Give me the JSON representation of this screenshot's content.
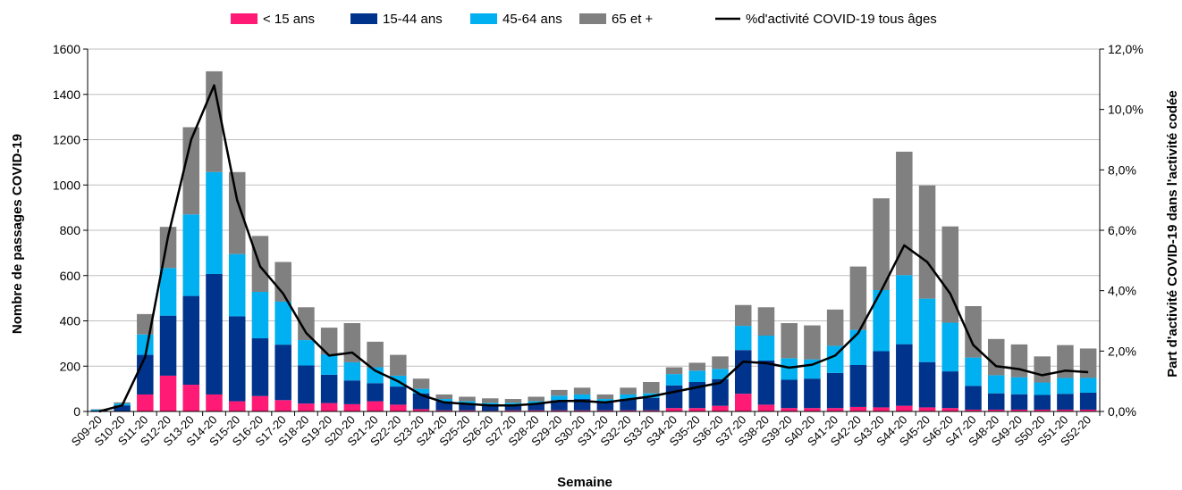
{
  "chart_data": {
    "type": "bar",
    "stacked": true,
    "xlabel": "Semaine",
    "ylabel": "Nombre de passages COVID-19",
    "y2label": "Part d'activité COVID-19 dans l'activité codée",
    "ylim": [
      0,
      1600
    ],
    "y2lim": [
      0,
      12
    ],
    "yticks": [
      "0",
      "200",
      "400",
      "600",
      "800",
      "1000",
      "1200",
      "1400",
      "1600"
    ],
    "y2ticks": [
      "0,0%",
      "2,0%",
      "4,0%",
      "6,0%",
      "8,0%",
      "10,0%",
      "12,0%"
    ],
    "grid": true,
    "legend_position": "top",
    "categories": [
      "S09-20",
      "S10-20",
      "S11-20",
      "S12-20",
      "S13-20",
      "S14-20",
      "S15-20",
      "S16-20",
      "S17-20",
      "S18-20",
      "S19-20",
      "S20-20",
      "S21-20",
      "S22-20",
      "S23-20",
      "S24-20",
      "S25-20",
      "S26-20",
      "S27-20",
      "S28-20",
      "S29-20",
      "S30-20",
      "S31-20",
      "S32-20",
      "S33-20",
      "S34-20",
      "S35-20",
      "S36-20",
      "S37-20",
      "S38-20",
      "S39-20",
      "S40-20",
      "S41-20",
      "S42-20",
      "S43-20",
      "S44-20",
      "S45-20",
      "S46-20",
      "S47-20",
      "S48-20",
      "S49-20",
      "S50-20",
      "S51-20",
      "S52-20"
    ],
    "series": [
      {
        "name": "< 15 ans",
        "color": "#ff1a75",
        "values": [
          1,
          2,
          75,
          158,
          118,
          75,
          45,
          68,
          50,
          35,
          37,
          32,
          45,
          30,
          10,
          5,
          5,
          3,
          5,
          5,
          5,
          5,
          5,
          5,
          5,
          15,
          15,
          25,
          78,
          30,
          15,
          15,
          15,
          20,
          18,
          25,
          18,
          15,
          8,
          8,
          8,
          8,
          8,
          8
        ]
      },
      {
        "name": "15-44 ans",
        "color": "#00338c",
        "values": [
          3,
          25,
          175,
          265,
          392,
          532,
          375,
          255,
          245,
          168,
          125,
          105,
          80,
          80,
          70,
          40,
          30,
          25,
          25,
          30,
          45,
          50,
          40,
          50,
          55,
          100,
          115,
          118,
          193,
          195,
          125,
          130,
          155,
          185,
          248,
          272,
          200,
          162,
          105,
          72,
          68,
          65,
          70,
          75
        ]
      },
      {
        "name": "45-64 ans",
        "color": "#00b0f0",
        "values": [
          4,
          8,
          90,
          210,
          360,
          450,
          275,
          205,
          190,
          112,
          90,
          80,
          70,
          48,
          20,
          10,
          10,
          10,
          8,
          10,
          20,
          20,
          10,
          20,
          20,
          50,
          50,
          45,
          107,
          110,
          95,
          85,
          120,
          155,
          270,
          305,
          280,
          215,
          125,
          80,
          75,
          55,
          70,
          65
        ]
      },
      {
        "name": "65 et +",
        "color": "#808080",
        "values": [
          2,
          5,
          90,
          182,
          385,
          445,
          362,
          247,
          175,
          145,
          118,
          173,
          113,
          92,
          45,
          20,
          20,
          20,
          17,
          20,
          25,
          30,
          20,
          30,
          50,
          30,
          35,
          55,
          92,
          125,
          155,
          150,
          160,
          280,
          405,
          545,
          500,
          425,
          227,
          160,
          145,
          115,
          145,
          130
        ]
      },
      {
        "name": "%d'activité COVID-19 tous âges",
        "color": "#000000",
        "type": "line",
        "axis": "right",
        "values": [
          0.0,
          0.2,
          1.8,
          5.8,
          9.0,
          10.8,
          7.0,
          4.8,
          3.9,
          2.6,
          1.85,
          1.95,
          1.35,
          1.0,
          0.55,
          0.3,
          0.25,
          0.2,
          0.2,
          0.25,
          0.35,
          0.35,
          0.3,
          0.4,
          0.5,
          0.65,
          0.8,
          0.95,
          1.65,
          1.6,
          1.45,
          1.55,
          1.85,
          2.6,
          4.0,
          5.5,
          4.95,
          3.9,
          2.2,
          1.5,
          1.4,
          1.2,
          1.35,
          1.3
        ]
      }
    ]
  }
}
